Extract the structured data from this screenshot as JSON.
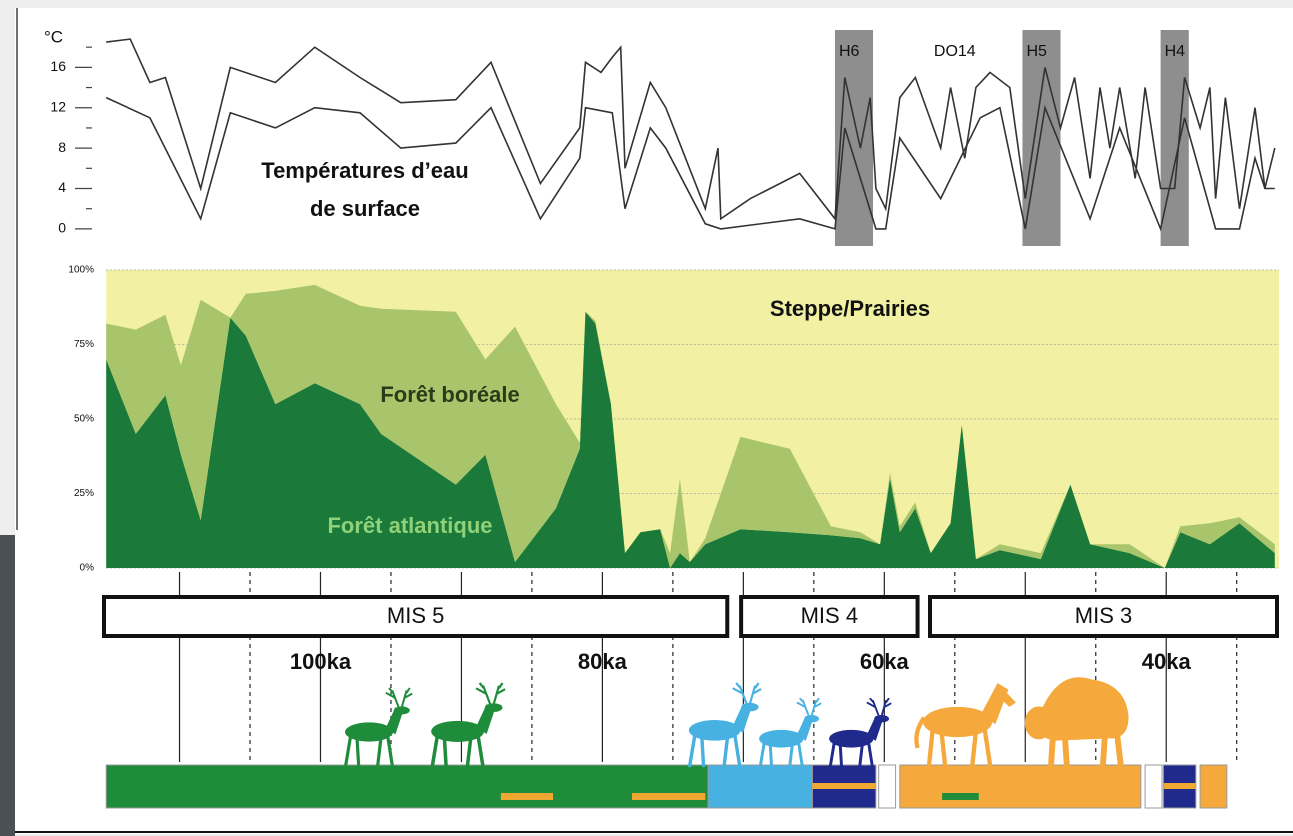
{
  "chart_data": [
    {
      "type": "line",
      "unit": "°C",
      "xlim": [
        115.5,
        32
      ],
      "ylim": [
        -1.1,
        19.7
      ],
      "yticks": [
        0,
        4,
        8,
        12,
        16
      ],
      "yminor": [
        2,
        6,
        10,
        14,
        18
      ],
      "label_lines": [
        "Températures d’eau",
        "de surface"
      ],
      "events": [
        {
          "label": "H6",
          "start": 63.5,
          "end": 60.8
        },
        {
          "label": "H5",
          "start": 50.2,
          "end": 47.5
        },
        {
          "label": "H4",
          "start": 40.4,
          "end": 38.4
        }
      ],
      "event_color": "#8e8e8e",
      "annotations": [
        {
          "text": "DO14",
          "x": 55
        }
      ],
      "series": [
        {
          "color": "#333333",
          "x": [
            115.2,
            113.5,
            112.1,
            111,
            108.5,
            106.4,
            103.2,
            100.4,
            97.2,
            94.3,
            90.4,
            87.9,
            84.4,
            81.6,
            81.2,
            80.1,
            79.3,
            78.7,
            78.4,
            76.6,
            75.5,
            72.7,
            71.8,
            71.6,
            69.5,
            66,
            63.5,
            62.8,
            61.7,
            61,
            60.6,
            59.9,
            58.9,
            57.8,
            56,
            55.3,
            54.3,
            53.5,
            52.5,
            51.1,
            50.7,
            50,
            48.6,
            47.5,
            46.5,
            45.4,
            44.7,
            44,
            43.3,
            42.2,
            41.5,
            40.4,
            39.4,
            38.7,
            37.6,
            36.9,
            36.5,
            35.8,
            34.8,
            33.7,
            33,
            32.3
          ],
          "values": [
            18.5,
            18.8,
            14.5,
            15,
            4,
            16,
            14.5,
            18,
            15,
            12.5,
            12.8,
            16.5,
            4.5,
            10,
            16.5,
            15.5,
            17,
            18,
            6,
            14.5,
            12,
            2,
            8,
            1,
            3,
            5.5,
            1,
            15,
            8,
            13,
            4,
            2,
            13,
            15,
            8,
            14,
            7,
            14,
            15.5,
            14,
            10,
            3,
            16,
            10,
            15,
            5,
            14,
            8,
            14,
            5,
            14,
            4,
            4,
            15,
            10,
            14,
            3,
            13,
            2,
            12,
            4,
            8
          ]
        },
        {
          "color": "#333333",
          "x": [
            115.2,
            112.1,
            108.5,
            106.4,
            103.2,
            100.4,
            97.2,
            94.3,
            90.4,
            87.9,
            84.4,
            81.6,
            81.2,
            79.3,
            78.4,
            76.6,
            75.5,
            72.7,
            71.6,
            66,
            63.5,
            62.8,
            60.6,
            59.9,
            58.9,
            56,
            53.2,
            51.8,
            50,
            48.6,
            45.4,
            43.3,
            40.4,
            38.7,
            36.5,
            34.8,
            33.7,
            33,
            32.3
          ],
          "values": [
            13,
            11,
            1,
            11.5,
            10,
            12,
            11.5,
            8,
            8.5,
            12,
            1,
            7,
            12,
            11.5,
            2,
            10,
            8,
            0.5,
            0,
            1,
            0,
            10,
            0,
            0,
            9,
            3,
            11,
            12,
            0,
            12,
            1,
            10,
            0,
            11,
            0,
            0,
            7,
            4,
            4
          ]
        }
      ]
    },
    {
      "type": "area",
      "stacked": true,
      "xlim": [
        115.5,
        32
      ],
      "ylim": [
        0,
        100
      ],
      "yticks": [
        {
          "value": 0,
          "label": "0%"
        },
        {
          "value": 25,
          "label": "25%"
        },
        {
          "value": 50,
          "label": "50%"
        },
        {
          "value": 75,
          "label": "75%"
        },
        {
          "value": 100,
          "label": "100%"
        }
      ],
      "grid": true,
      "background_label": "Steppe/Prairies",
      "background_color": "#f2f0a2",
      "x": [
        115.2,
        113.1,
        111,
        109.9,
        108.5,
        106.4,
        105.3,
        103.2,
        100.4,
        97.2,
        95.7,
        90.4,
        88.3,
        86.2,
        83.3,
        81.6,
        81.2,
        80.5,
        79.4,
        78.4,
        77.3,
        75.9,
        75.2,
        74.5,
        73.8,
        72.7,
        70.2,
        66.7,
        63.8,
        61.7,
        60.3,
        59.6,
        58.9,
        57.8,
        56.7,
        55.3,
        54.5,
        53.5,
        51.8,
        48.9,
        46.8,
        45.4,
        42.6,
        40.1,
        39,
        36.9,
        34.8,
        32.3
      ],
      "series": [
        {
          "name": "Forêt atlantique",
          "color": "#1b7a3a",
          "label_color": "#8fd27a",
          "values": [
            70,
            45,
            58,
            38,
            16,
            84,
            78,
            55,
            62,
            55,
            45,
            28,
            38,
            2,
            20,
            40,
            86,
            82,
            55,
            5,
            12,
            13,
            0,
            5,
            2,
            8,
            13,
            12,
            11,
            10,
            8,
            30,
            12,
            20,
            5,
            15,
            48,
            3,
            6,
            3,
            28,
            8,
            5,
            0,
            12,
            8,
            15,
            5
          ]
        },
        {
          "name": "Forêt boréale",
          "color": "#a9c56c",
          "label_color": "#2b3a17",
          "values": [
            12,
            35,
            27,
            30,
            74,
            0,
            14,
            38,
            33,
            33,
            42,
            58,
            32,
            79,
            35,
            2,
            0,
            1,
            0,
            0,
            0,
            0,
            5,
            25,
            0,
            2,
            31,
            28,
            3,
            2,
            0,
            2,
            2,
            2,
            0,
            0,
            0,
            0,
            2,
            2,
            0,
            0,
            3,
            0,
            2,
            7,
            2,
            3
          ]
        }
      ]
    },
    {
      "type": "timeline",
      "xlim": [
        115.5,
        32
      ],
      "xgrid": [
        110,
        105,
        100,
        95,
        90,
        85,
        80,
        75,
        70,
        65,
        60,
        55,
        50,
        45,
        40,
        35
      ],
      "xticks": [
        {
          "value": 100,
          "label": "100ka"
        },
        {
          "value": 80,
          "label": "80ka"
        },
        {
          "value": 60,
          "label": "60ka"
        },
        {
          "value": 40,
          "label": "40ka"
        }
      ],
      "periods": [
        {
          "label": "MIS 5",
          "start": 115.5,
          "end": 71
        },
        {
          "label": "MIS 4",
          "start": 70.3,
          "end": 57.5
        },
        {
          "label": "MIS 3",
          "start": 56.9,
          "end": 32
        }
      ],
      "fauna": [
        {
          "start": 115.2,
          "end": 72.5,
          "color": "#1f8c3b"
        },
        {
          "start": 72.5,
          "end": 65.1,
          "color": "#47b1e2"
        },
        {
          "start": 65.1,
          "end": 60.6,
          "color": "#1f2a8c",
          "stripe": "#f0a830"
        },
        {
          "start": 60.4,
          "end": 59.2,
          "color": "#ffffff"
        },
        {
          "start": 58.9,
          "end": 41.8,
          "color": "#f5a93c"
        },
        {
          "start": 41.5,
          "end": 40.3,
          "color": "#ffffff"
        },
        {
          "start": 40.2,
          "end": 37.9,
          "color": "#1f2a8c",
          "stripe": "#f0a830"
        },
        {
          "start": 37.6,
          "end": 35.7,
          "color": "#f5a93c"
        }
      ],
      "fauna_marks": [
        {
          "start": 87.2,
          "end": 83.5,
          "color": "#f0a830"
        },
        {
          "start": 77.9,
          "end": 72.7,
          "color": "#f0a830"
        },
        {
          "start": 55.9,
          "end": 53.3,
          "color": "#1f8c3b"
        }
      ]
    }
  ]
}
